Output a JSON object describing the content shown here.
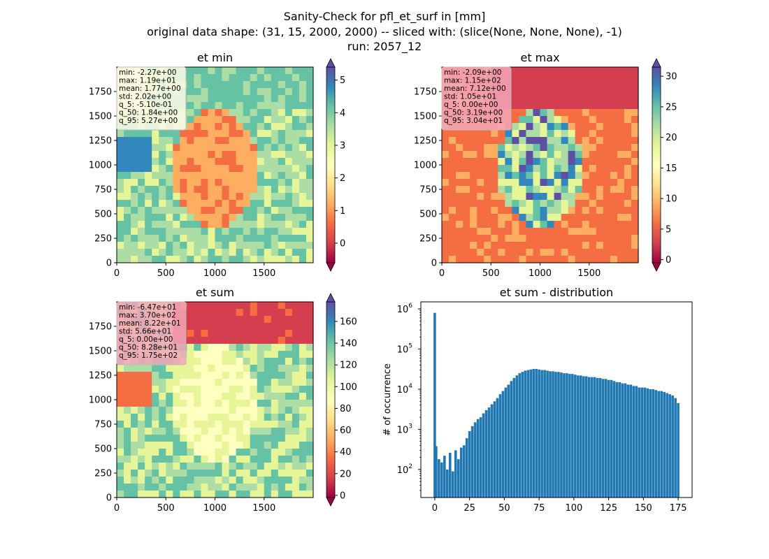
{
  "figure": {
    "title_lines": [
      "Sanity-Check for pfl_et_surf in [mm]",
      "original data shape: (31, 15, 2000, 2000) -- sliced with: (slice(None, None, None), -1)",
      "run: 2057_12"
    ]
  },
  "colors": {
    "spectral": [
      "#9e0142",
      "#d53e4f",
      "#f46d43",
      "#fdae61",
      "#fee08b",
      "#ffffbf",
      "#e6f598",
      "#abdda4",
      "#66c2a5",
      "#3288bd",
      "#5e4fa2"
    ],
    "hist_bar": "#1f77b4",
    "stats_box_light": "#fffbe6",
    "stats_box_pink": "#f4a6b8"
  },
  "chart_data": [
    {
      "type": "heatmap",
      "title": "et min",
      "colormap": "Spectral",
      "x_ticks": [
        "0",
        "500",
        "1000",
        "1500"
      ],
      "y_ticks": [
        "0",
        "250",
        "500",
        "750",
        "1000",
        "1250",
        "1500",
        "1750"
      ],
      "xlim": [
        0,
        2000
      ],
      "ylim": [
        0,
        2000
      ],
      "colorbar_ticks": [
        "0",
        "1",
        "2",
        "3",
        "4",
        "5"
      ],
      "colorbar_range": [
        -0.6,
        5.4
      ],
      "stats_box_style": "light",
      "stats": [
        "min: -2.27e+00",
        "max: 1.19e+01",
        "mean: 1.77e+00",
        "std: 2.02e+00",
        "q_5: -5.10e-01",
        "q_50: 1.84e+00",
        "q_95: 5.27e+00"
      ]
    },
    {
      "type": "heatmap",
      "title": "et max",
      "colormap": "Spectral",
      "x_ticks": [
        "0",
        "500",
        "1000",
        "1500"
      ],
      "y_ticks": [
        "0",
        "250",
        "500",
        "750",
        "1000",
        "1250",
        "1500",
        "1750"
      ],
      "xlim": [
        0,
        2000
      ],
      "ylim": [
        0,
        2000
      ],
      "colorbar_ticks": [
        "0",
        "5",
        "10",
        "15",
        "20",
        "25",
        "30"
      ],
      "colorbar_range": [
        -0.5,
        31.5
      ],
      "stats_box_style": "pink",
      "stats": [
        "min: -2.09e+00",
        "max: 1.15e+02",
        "mean: 7.12e+00",
        "std: 1.05e+01",
        "q_5: 0.00e+00",
        "q_50: 3.19e+00",
        "q_95: 3.04e+01"
      ]
    },
    {
      "type": "heatmap",
      "title": "et sum",
      "colormap": "Spectral",
      "x_ticks": [
        "0",
        "500",
        "1000",
        "1500"
      ],
      "y_ticks": [
        "0",
        "250",
        "500",
        "750",
        "1000",
        "1250",
        "1500",
        "1750"
      ],
      "xlim": [
        0,
        2000
      ],
      "ylim": [
        0,
        2000
      ],
      "colorbar_ticks": [
        "0",
        "20",
        "40",
        "60",
        "80",
        "100",
        "120",
        "140",
        "160"
      ],
      "colorbar_range": [
        -2,
        178
      ],
      "stats_box_style": "pink",
      "stats": [
        "min: -6.47e+01",
        "max: 3.70e+02",
        "mean: 8.22e+01",
        "std: 5.66e+01",
        "q_5: 0.00e+00",
        "q_50: 8.28e+01",
        "q_95: 1.75e+02"
      ]
    },
    {
      "type": "bar",
      "title": "et sum - distribution",
      "ylabel": "# of occurrence",
      "xlabel": "",
      "xlim": [
        -10,
        185
      ],
      "yscale": "log",
      "ylim": [
        20,
        1500000
      ],
      "x_ticks": [
        "0",
        "25",
        "50",
        "75",
        "100",
        "125",
        "150",
        "175"
      ],
      "y_ticks": [
        {
          "exp": "2",
          "value": 100
        },
        {
          "exp": "3",
          "value": 1000
        },
        {
          "exp": "4",
          "value": 10000
        },
        {
          "exp": "5",
          "value": 100000
        },
        {
          "exp": "6",
          "value": 1000000
        }
      ],
      "bins": [
        {
          "x": 0,
          "count": 800000
        },
        {
          "x": 1,
          "count": 380
        },
        {
          "x": 3,
          "count": 180
        },
        {
          "x": 5,
          "count": 150
        },
        {
          "x": 7,
          "count": 220
        },
        {
          "x": 9,
          "count": 100
        },
        {
          "x": 11,
          "count": 260
        },
        {
          "x": 13,
          "count": 90
        },
        {
          "x": 15,
          "count": 300
        },
        {
          "x": 17,
          "count": 180
        },
        {
          "x": 19,
          "count": 350
        },
        {
          "x": 21,
          "count": 400
        },
        {
          "x": 23,
          "count": 600
        },
        {
          "x": 25,
          "count": 900
        },
        {
          "x": 27,
          "count": 1200
        },
        {
          "x": 29,
          "count": 1500
        },
        {
          "x": 31,
          "count": 1800
        },
        {
          "x": 33,
          "count": 2000
        },
        {
          "x": 35,
          "count": 2500
        },
        {
          "x": 37,
          "count": 3000
        },
        {
          "x": 39,
          "count": 3500
        },
        {
          "x": 41,
          "count": 4200
        },
        {
          "x": 43,
          "count": 5000
        },
        {
          "x": 45,
          "count": 6000
        },
        {
          "x": 47,
          "count": 7500
        },
        {
          "x": 49,
          "count": 9000
        },
        {
          "x": 51,
          "count": 11000
        },
        {
          "x": 53,
          "count": 13000
        },
        {
          "x": 55,
          "count": 16000
        },
        {
          "x": 57,
          "count": 19000
        },
        {
          "x": 59,
          "count": 22000
        },
        {
          "x": 61,
          "count": 25000
        },
        {
          "x": 63,
          "count": 27000
        },
        {
          "x": 65,
          "count": 29000
        },
        {
          "x": 67,
          "count": 30000
        },
        {
          "x": 69,
          "count": 31000
        },
        {
          "x": 71,
          "count": 32000
        },
        {
          "x": 73,
          "count": 32000
        },
        {
          "x": 75,
          "count": 31000
        },
        {
          "x": 77,
          "count": 30000
        },
        {
          "x": 79,
          "count": 30000
        },
        {
          "x": 81,
          "count": 29000
        },
        {
          "x": 83,
          "count": 28000
        },
        {
          "x": 85,
          "count": 28000
        },
        {
          "x": 87,
          "count": 27000
        },
        {
          "x": 89,
          "count": 27000
        },
        {
          "x": 91,
          "count": 26000
        },
        {
          "x": 93,
          "count": 25000
        },
        {
          "x": 95,
          "count": 25000
        },
        {
          "x": 97,
          "count": 24000
        },
        {
          "x": 99,
          "count": 24000
        },
        {
          "x": 101,
          "count": 23000
        },
        {
          "x": 103,
          "count": 22000
        },
        {
          "x": 105,
          "count": 22000
        },
        {
          "x": 107,
          "count": 21000
        },
        {
          "x": 109,
          "count": 21000
        },
        {
          "x": 111,
          "count": 20000
        },
        {
          "x": 113,
          "count": 20000
        },
        {
          "x": 115,
          "count": 20000
        },
        {
          "x": 117,
          "count": 19000
        },
        {
          "x": 119,
          "count": 19000
        },
        {
          "x": 121,
          "count": 18000
        },
        {
          "x": 123,
          "count": 18000
        },
        {
          "x": 125,
          "count": 17000
        },
        {
          "x": 127,
          "count": 17000
        },
        {
          "x": 129,
          "count": 16000
        },
        {
          "x": 131,
          "count": 15000
        },
        {
          "x": 133,
          "count": 15000
        },
        {
          "x": 135,
          "count": 14000
        },
        {
          "x": 137,
          "count": 14000
        },
        {
          "x": 139,
          "count": 13000
        },
        {
          "x": 141,
          "count": 13000
        },
        {
          "x": 143,
          "count": 12000
        },
        {
          "x": 145,
          "count": 12000
        },
        {
          "x": 147,
          "count": 11000
        },
        {
          "x": 149,
          "count": 11000
        },
        {
          "x": 151,
          "count": 11000
        },
        {
          "x": 153,
          "count": 10500
        },
        {
          "x": 155,
          "count": 10000
        },
        {
          "x": 157,
          "count": 10000
        },
        {
          "x": 159,
          "count": 9500
        },
        {
          "x": 161,
          "count": 9000
        },
        {
          "x": 163,
          "count": 9000
        },
        {
          "x": 165,
          "count": 8500
        },
        {
          "x": 167,
          "count": 8000
        },
        {
          "x": 169,
          "count": 7500
        },
        {
          "x": 171,
          "count": 7000
        },
        {
          "x": 173,
          "count": 6000
        },
        {
          "x": 175,
          "count": 4500
        }
      ]
    }
  ]
}
